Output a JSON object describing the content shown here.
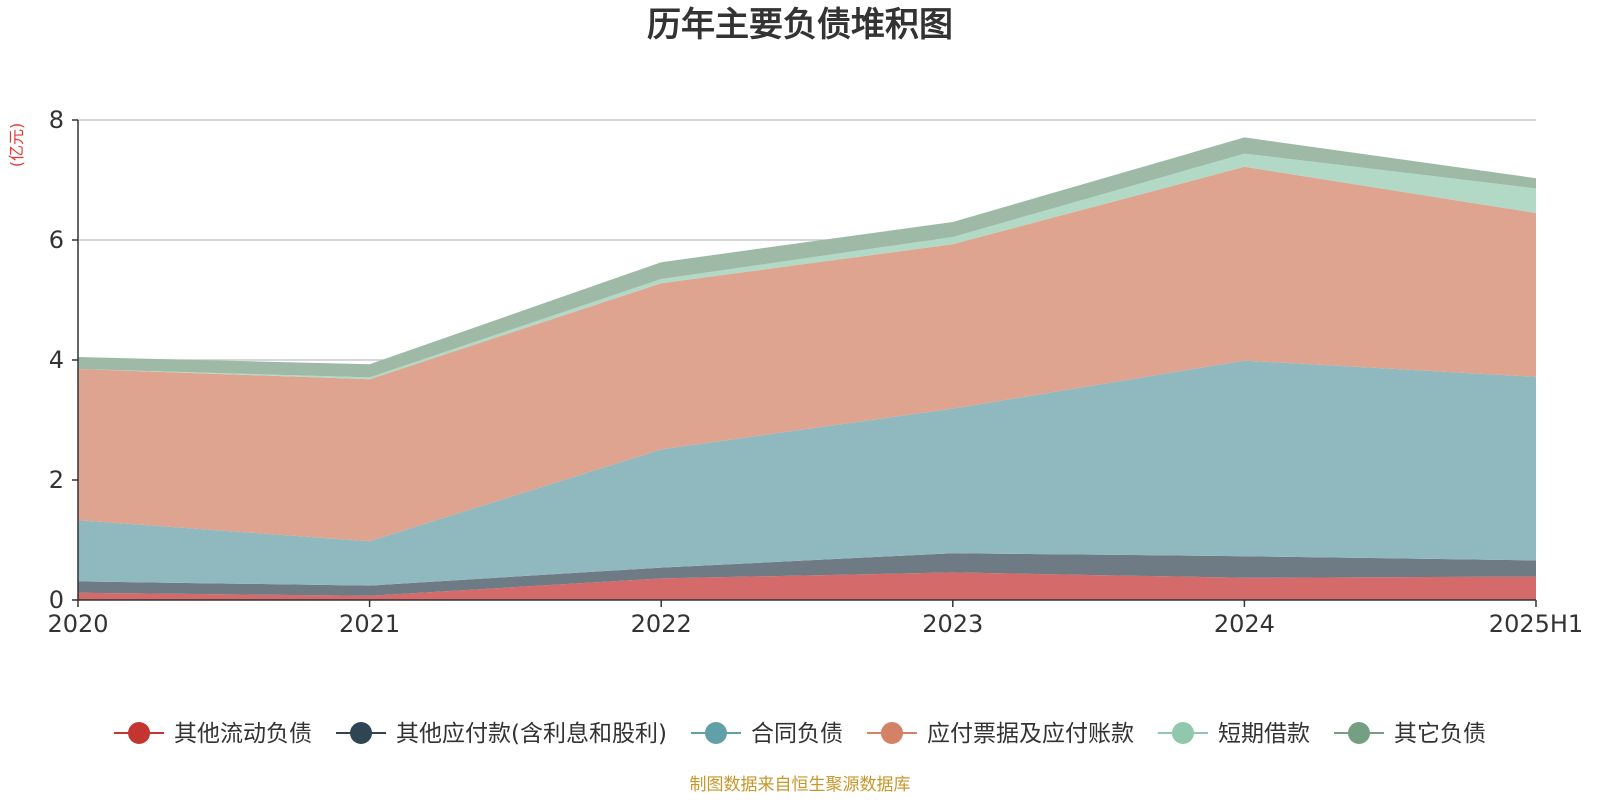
{
  "chart_data": {
    "type": "area",
    "stacked": true,
    "title": "历年主要负债堆积图",
    "unit_label": "(亿元)",
    "categories": [
      "2020",
      "2021",
      "2022",
      "2023",
      "2024",
      "2025H1"
    ],
    "ylim": [
      0,
      8
    ],
    "yticks": [
      "0",
      "2",
      "4",
      "6",
      "8"
    ],
    "grid": true,
    "legend_position": "bottom",
    "series": [
      {
        "name": "其他流动负债",
        "color": "#c23531",
        "area_color": "#d46b6a",
        "values": [
          0.12,
          0.07,
          0.36,
          0.46,
          0.37,
          0.39
        ]
      },
      {
        "name": "其他应付款(含利息和股利)",
        "color": "#2f4554",
        "area_color": "#6e7a84",
        "values": [
          0.19,
          0.17,
          0.18,
          0.32,
          0.36,
          0.27
        ]
      },
      {
        "name": "合同负债",
        "color": "#61a0a8",
        "area_color": "#90b9bf",
        "values": [
          1.02,
          0.74,
          1.97,
          2.41,
          3.26,
          3.06
        ]
      },
      {
        "name": "应付票据及应付账款",
        "color": "#d48265",
        "area_color": "#dfa48f",
        "values": [
          2.52,
          2.7,
          2.77,
          2.74,
          3.23,
          2.73
        ]
      },
      {
        "name": "短期借款",
        "color": "#91c7ae",
        "area_color": "#b2d9c6",
        "values": [
          0.0,
          0.03,
          0.07,
          0.12,
          0.22,
          0.41
        ]
      },
      {
        "name": "其它负债",
        "color": "#749f83",
        "area_color": "#9ebaa6",
        "values": [
          0.2,
          0.22,
          0.28,
          0.25,
          0.27,
          0.17
        ]
      }
    ]
  },
  "source_text": "制图数据来自恒生聚源数据库"
}
